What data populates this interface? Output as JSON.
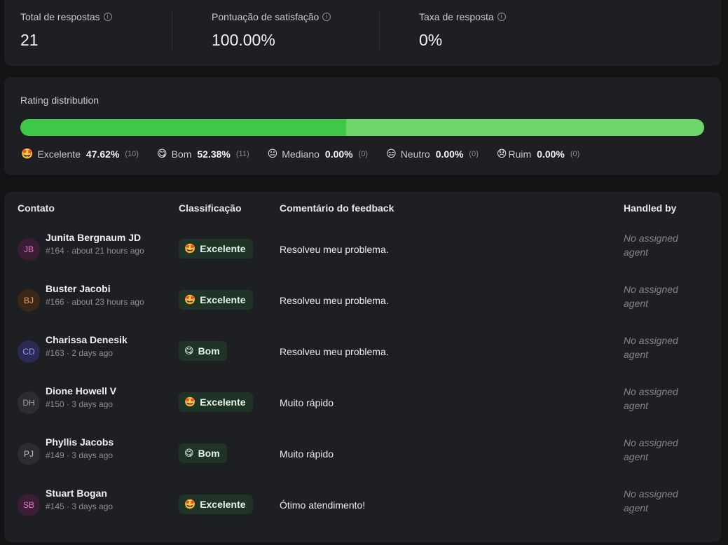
{
  "stats": [
    {
      "label": "Total de respostas",
      "value": "21"
    },
    {
      "label": "Pontuação de satisfação",
      "value": "100.00%"
    },
    {
      "label": "Taxa de resposta",
      "value": "0%"
    }
  ],
  "rating": {
    "title": "Rating distribution",
    "segments": [
      {
        "emoji": "🤩",
        "label": "Excelente",
        "pct": "47.62%",
        "count": "(10)",
        "fraction": 0.4762,
        "color": "#3fc748"
      },
      {
        "emoji": "😋",
        "label": "Bom",
        "pct": "52.38%",
        "count": "(11)",
        "fraction": 0.5238,
        "color": "#6dd56b"
      },
      {
        "emoji": "😐",
        "label": "Mediano",
        "pct": "0.00%",
        "count": "(0)",
        "fraction": 0,
        "color": "#f5c542"
      },
      {
        "emoji": "😑",
        "label": "Neutro",
        "pct": "0.00%",
        "count": "(0)",
        "fraction": 0,
        "color": "#f59e42"
      },
      {
        "emoji": "😞",
        "label": "Ruim",
        "pct": "0.00%",
        "count": "(0)",
        "fraction": 0,
        "color": "#e5484d"
      }
    ]
  },
  "table": {
    "headers": {
      "contact": "Contato",
      "rating": "Classificação",
      "comment": "Comentário do feedback",
      "handled": "Handled by"
    },
    "rows": [
      {
        "initials": "JB",
        "name": "Junita Bergnaum JD",
        "meta": "#164 · about 21 hours ago",
        "emoji": "🤩",
        "rating": "Excelente",
        "comment": "Resolveu meu problema.",
        "handled": "No assigned agent",
        "avatar_bg": "#3b1d36",
        "avatar_fg": "#e27fc6"
      },
      {
        "initials": "BJ",
        "name": "Buster Jacobi",
        "meta": "#166 · about 23 hours ago",
        "emoji": "🤩",
        "rating": "Excelente",
        "comment": "Resolveu meu problema.",
        "handled": "No assigned agent",
        "avatar_bg": "#3b2818",
        "avatar_fg": "#f0a060"
      },
      {
        "initials": "CD",
        "name": "Charissa Denesik",
        "meta": "#163 · 2 days ago",
        "emoji": "😋",
        "rating": "Bom",
        "comment": "Resolveu meu problema.",
        "handled": "No assigned agent",
        "avatar_bg": "#2a2a55",
        "avatar_fg": "#9a9ef0"
      },
      {
        "initials": "DH",
        "name": "Dione Howell V",
        "meta": "#150 · 3 days ago",
        "emoji": "🤩",
        "rating": "Excelente",
        "comment": "Muito rápido",
        "handled": "No assigned agent",
        "avatar_bg": "#2c2d31",
        "avatar_fg": "#a0a0a8"
      },
      {
        "initials": "PJ",
        "name": "Phyllis Jacobs",
        "meta": "#149 · 3 days ago",
        "emoji": "😋",
        "rating": "Bom",
        "comment": "Muito rápido",
        "handled": "No assigned agent",
        "avatar_bg": "#2c2d31",
        "avatar_fg": "#c0c0c8"
      },
      {
        "initials": "SB",
        "name": "Stuart Bogan",
        "meta": "#145 · 3 days ago",
        "emoji": "🤩",
        "rating": "Excelente",
        "comment": "Ótimo atendimento!",
        "handled": "No assigned agent",
        "avatar_bg": "#3b1d36",
        "avatar_fg": "#e27fc6"
      }
    ]
  }
}
